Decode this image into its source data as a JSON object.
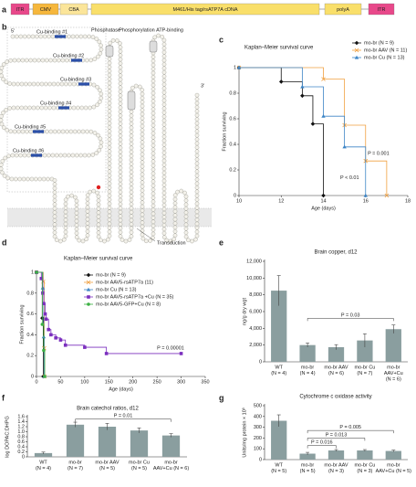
{
  "panel_labels": [
    "a",
    "b",
    "c",
    "d",
    "e",
    "f",
    "g"
  ],
  "construct": [
    {
      "label": "ITR",
      "color": "#e8488a"
    },
    {
      "label": "CMV",
      "color": "#f6b73c"
    },
    {
      "label": "CBA",
      "color": "#fbe59a"
    },
    {
      "label": "M461/His tag/rsATP7A cDNA",
      "color": "#f9df6a"
    },
    {
      "label": "polyA",
      "color": "#f9df6a"
    },
    {
      "label": "ITR",
      "color": "#e8488a"
    }
  ],
  "topology": {
    "five_prime": "5'",
    "three_prime": "3'",
    "cu_sites": [
      "Cu-binding #1",
      "Cu-binding #2",
      "Cu-binding #3",
      "Cu-binding #4",
      "Cu-binding #5",
      "Cu-binding #6"
    ],
    "domains": [
      "Phosphatase",
      "Phosphorylation",
      "ATP-binding"
    ],
    "transduction": "Transduction"
  },
  "chart_data": [
    {
      "type": "survival",
      "title": "Kaplan–Meier survival curve",
      "xlabel": "Age (days)",
      "ylabel": "Fraction surviving",
      "xlim": [
        10,
        18
      ],
      "xticks": [
        10,
        12,
        14,
        16,
        18
      ],
      "ylim": [
        0,
        1
      ],
      "yticks": [
        0,
        0.2,
        0.4,
        0.6,
        0.8,
        1
      ],
      "legend": "upper right",
      "series": [
        {
          "name": "mo-br (N = 9)",
          "color": "#111111",
          "marker": "diamond",
          "x": [
            10,
            12,
            13,
            13.5,
            14
          ],
          "values": [
            1,
            0.89,
            0.78,
            0.56,
            0
          ]
        },
        {
          "name": "mo-br AAV (N = 11)",
          "color": "#f0a040",
          "marker": "x",
          "x": [
            10,
            14,
            15,
            16,
            17
          ],
          "values": [
            1,
            0.91,
            0.55,
            0.27,
            0
          ]
        },
        {
          "name": "mo-br Cu (N = 13)",
          "color": "#3d85c6",
          "marker": "triangle",
          "x": [
            10,
            13,
            14,
            15,
            16
          ],
          "values": [
            1,
            0.85,
            0.62,
            0.38,
            0
          ]
        }
      ],
      "annotations": [
        "P = 0.001",
        "P < 0.01"
      ]
    },
    {
      "type": "survival",
      "title": "Kaplan–Meier survival curve",
      "xlabel": "Age (days)",
      "ylabel": "Fraction surviving",
      "xlim": [
        0,
        350
      ],
      "xticks": [
        0,
        50,
        100,
        150,
        200,
        250,
        300,
        350
      ],
      "ylim": [
        0,
        1
      ],
      "yticks": [
        0,
        0.2,
        0.4,
        0.6,
        0.8,
        1
      ],
      "legend": "upper right",
      "series": [
        {
          "name": "mo-br (N = 9)",
          "color": "#111111",
          "marker": "diamond",
          "x": [
            0,
            12,
            14
          ],
          "values": [
            1,
            0.56,
            0
          ]
        },
        {
          "name": "mo-br AAV5-rsATP7a (11)",
          "color": "#f0a040",
          "marker": "x",
          "x": [
            0,
            14,
            16,
            17
          ],
          "values": [
            1,
            0.91,
            0.27,
            0
          ]
        },
        {
          "name": "mo-br Cu (N = 13)",
          "color": "#3d85c6",
          "marker": "triangle",
          "x": [
            0,
            13,
            15,
            16
          ],
          "values": [
            1,
            0.85,
            0.38,
            0
          ]
        },
        {
          "name": "mo-br AAV5-rsATP7a +Cu (N = 35)",
          "color": "#7b2fbe",
          "marker": "square",
          "x": [
            0,
            10,
            13,
            15,
            18,
            20,
            25,
            30,
            40,
            50,
            60,
            100,
            145,
            300
          ],
          "values": [
            1,
            0.94,
            0.8,
            0.7,
            0.6,
            0.55,
            0.45,
            0.4,
            0.37,
            0.35,
            0.3,
            0.28,
            0.22,
            0.22
          ]
        },
        {
          "name": "mo-br AAV5-GFP+Cu (N = 8)",
          "color": "#3cb043",
          "marker": "circle",
          "x": [
            0,
            12,
            15,
            17
          ],
          "values": [
            1,
            0.5,
            0.25,
            0
          ]
        }
      ],
      "annotations": [
        "P = 0.00001"
      ]
    },
    {
      "type": "bar",
      "title": "Brain copper, d12",
      "ylabel": "ng/g dry wgt",
      "color": "#8a9e9f",
      "ylim": [
        0,
        12000
      ],
      "yticks": [
        0,
        {
          "value": 2000,
          "label": "2,000"
        },
        {
          "value": 4000,
          "label": "4,000"
        },
        {
          "value": 6000,
          "label": "6,000"
        },
        {
          "value": 8000,
          "label": "8,000"
        },
        {
          "value": 10000,
          "label": "10,000"
        },
        {
          "value": 12000,
          "label": "12,000"
        }
      ],
      "categories": [
        [
          "WT",
          "(N = 4)"
        ],
        [
          "mo-br",
          "(N = 4)"
        ],
        [
          "mo-br AAV",
          "(N = 6)"
        ],
        [
          "mo-br Cu",
          "(N = 7)"
        ],
        [
          "mo-br",
          "AAV+Cu",
          "(N = 6)"
        ]
      ],
      "values": [
        8500,
        2000,
        1750,
        2550,
        3900
      ],
      "errors": [
        1800,
        250,
        300,
        800,
        500
      ],
      "annotations": [
        "P = 0.03"
      ]
    },
    {
      "type": "bar",
      "title": "Brain catechol ratios, d12",
      "ylabel": "log DOPAC:DHPG",
      "color": "#8a9e9f",
      "ylim": [
        0,
        1.6
      ],
      "yticks": [
        0,
        0.2,
        0.4,
        0.6,
        0.8,
        {
          "value": 1,
          "label": "1.0"
        },
        1.2,
        1.4,
        1.6
      ],
      "categories": [
        [
          "WT",
          "(N = 4)"
        ],
        [
          "mo-br",
          "(N = 7)"
        ],
        [
          "mo-br AAV",
          "(N = 5)"
        ],
        [
          "mo-br Cu",
          "(N = 5)"
        ],
        [
          "mo-br",
          "AAV+Cu (N = 6)"
        ]
      ],
      "values": [
        0.15,
        1.28,
        1.2,
        1.05,
        0.85
      ],
      "errors": [
        0.04,
        0.1,
        0.13,
        0.1,
        0.07
      ],
      "annotations": [
        "P = 0.01"
      ]
    },
    {
      "type": "bar",
      "title": "Cytochrome c oxidase activity",
      "ylabel": "Units/mg protein × 10³",
      "color": "#8a9e9f",
      "ylim": [
        0,
        500
      ],
      "yticks": [
        0,
        100,
        200,
        300,
        400,
        500
      ],
      "categories": [
        [
          "WT",
          "(N = 5)"
        ],
        [
          "mo-br",
          "(N = 5)"
        ],
        [
          "mo-br AAV",
          "(N = 3)"
        ],
        [
          "mo-br Cu",
          "(N = 3)"
        ],
        [
          "mo-br",
          "AAV+Cu (N = 5)"
        ]
      ],
      "values": [
        360,
        55,
        85,
        85,
        80
      ],
      "errors": [
        55,
        12,
        8,
        8,
        8
      ],
      "annotations": [
        "P = 0.016",
        "P = 0.013",
        "P = 0.005"
      ]
    }
  ]
}
